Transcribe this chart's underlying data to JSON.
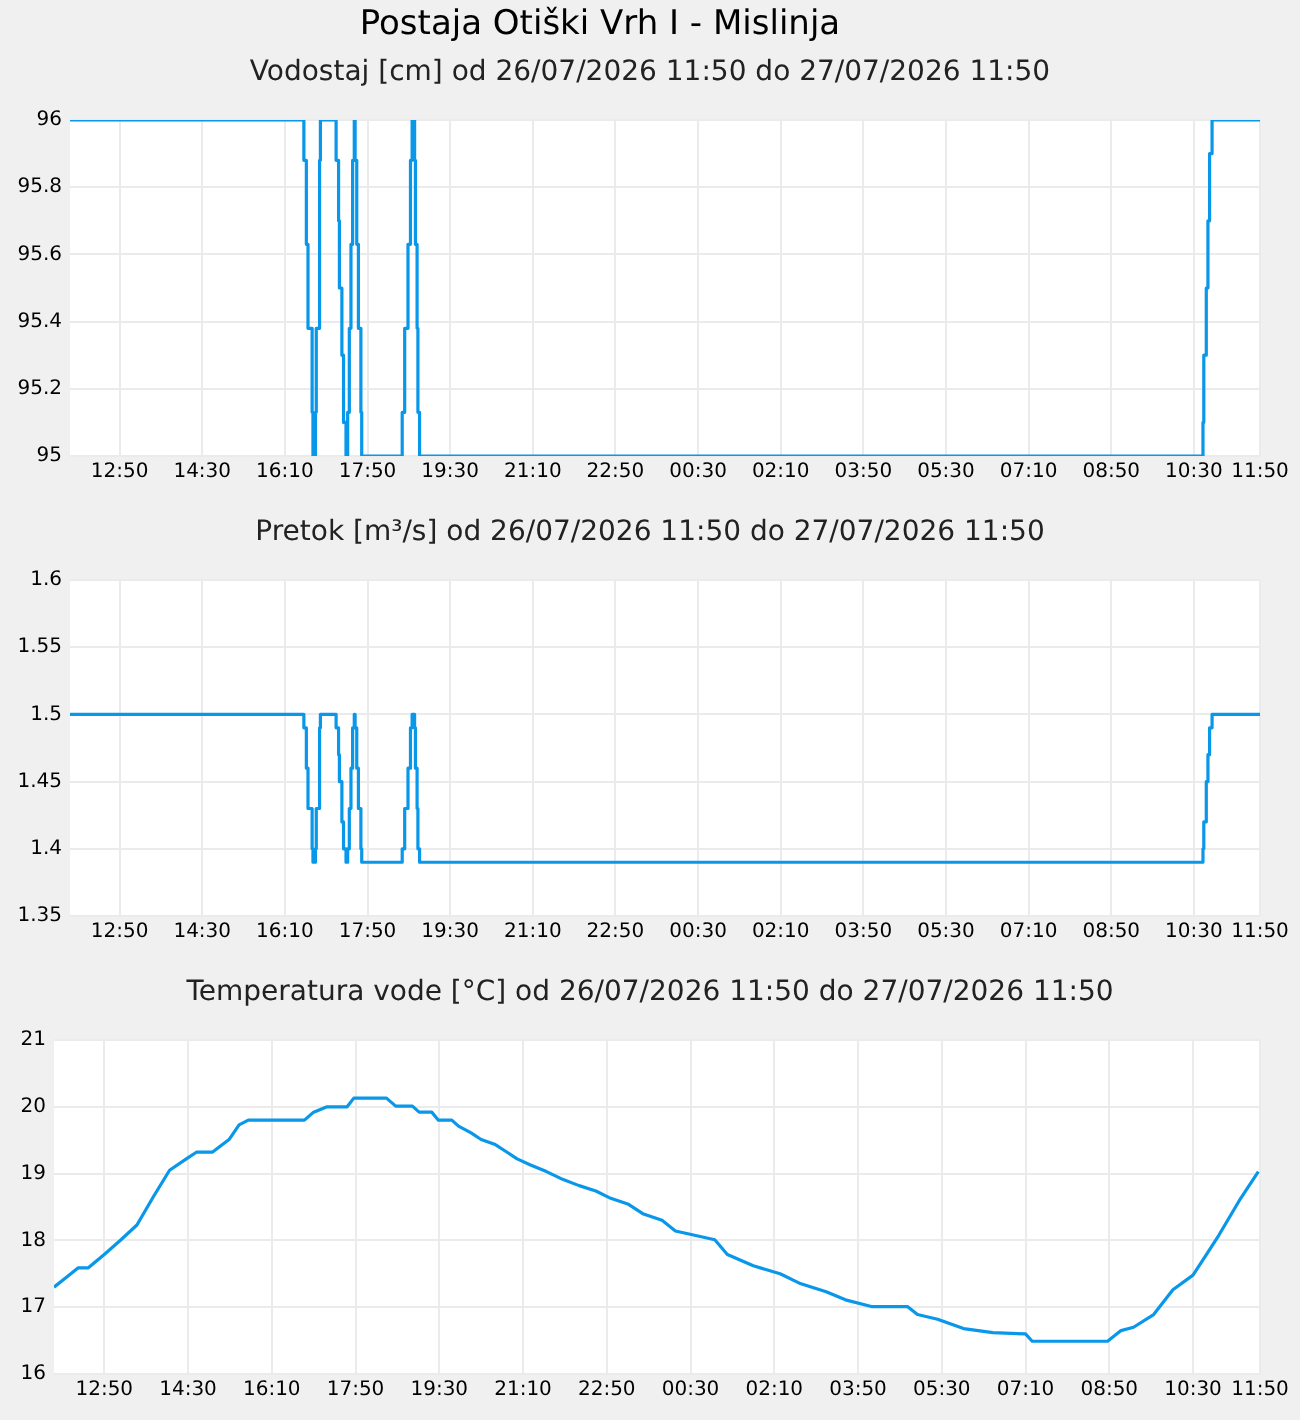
{
  "chart_data": [
    {
      "type": "step",
      "title": "Postaja Otiški Vrh I - Mislinja",
      "subtitle": "Vodostaj [cm] od 26/07/2026 11:50 do 27/07/2026 11:50",
      "color": "#0897e9",
      "grid": true,
      "x": [
        "2026-07-26T11:50",
        "2026-07-26T16:33",
        "2026-07-26T16:36",
        "2026-07-26T16:38",
        "2026-07-26T16:43",
        "2026-07-26T16:44",
        "2026-07-26T16:47",
        "2026-07-26T16:48",
        "2026-07-26T16:52",
        "2026-07-26T16:53",
        "2026-07-26T17:12",
        "2026-07-26T17:15",
        "2026-07-26T17:16",
        "2026-07-26T17:19",
        "2026-07-26T17:21",
        "2026-07-26T17:24",
        "2026-07-26T17:26",
        "2026-07-26T17:28",
        "2026-07-26T17:30",
        "2026-07-26T17:32",
        "2026-07-26T17:34",
        "2026-07-26T17:35",
        "2026-07-26T17:37",
        "2026-07-26T17:39",
        "2026-07-26T17:42",
        "2026-07-26T17:43",
        "2026-07-26T18:32",
        "2026-07-26T18:35",
        "2026-07-26T18:39",
        "2026-07-26T18:42",
        "2026-07-26T18:44",
        "2026-07-26T18:47",
        "2026-07-26T18:48",
        "2026-07-26T18:50",
        "2026-07-26T18:51",
        "2026-07-26T18:53",
        "2026-07-27T10:41",
        "2026-07-27T10:42",
        "2026-07-27T10:45",
        "2026-07-27T10:47",
        "2026-07-27T10:49",
        "2026-07-27T10:52",
        "2026-07-27T11:50"
      ],
      "values": [
        96,
        95.88,
        95.63,
        95.38,
        95.13,
        95,
        95.13,
        95.38,
        95.88,
        96,
        95.88,
        95.7,
        95.5,
        95.3,
        95.1,
        95,
        95.13,
        95.38,
        95.63,
        95.88,
        96,
        95.88,
        95.63,
        95.38,
        95.13,
        95,
        95.13,
        95.38,
        95.63,
        95.88,
        96,
        95.88,
        95.63,
        95.38,
        95.13,
        95,
        95.1,
        95.3,
        95.5,
        95.7,
        95.9,
        96,
        96
      ],
      "xlim": [
        "2026-07-26T11:50",
        "2026-07-27T11:50"
      ],
      "xticks": [
        {
          "value": "2026-07-26T12:50",
          "label": "12:50"
        },
        {
          "value": "2026-07-26T14:30",
          "label": "14:30"
        },
        {
          "value": "2026-07-26T16:10",
          "label": "16:10"
        },
        {
          "value": "2026-07-26T17:50",
          "label": "17:50"
        },
        {
          "value": "2026-07-26T19:30",
          "label": "19:30"
        },
        {
          "value": "2026-07-26T21:10",
          "label": "21:10"
        },
        {
          "value": "2026-07-26T22:50",
          "label": "22:50"
        },
        {
          "value": "2026-07-27T00:30",
          "label": "00:30"
        },
        {
          "value": "2026-07-27T02:10",
          "label": "02:10"
        },
        {
          "value": "2026-07-27T03:50",
          "label": "03:50"
        },
        {
          "value": "2026-07-27T05:30",
          "label": "05:30"
        },
        {
          "value": "2026-07-27T07:10",
          "label": "07:10"
        },
        {
          "value": "2026-07-27T08:50",
          "label": "08:50"
        },
        {
          "value": "2026-07-27T10:30",
          "label": "10:30"
        },
        {
          "value": "2026-07-27T11:50",
          "label": "11:50"
        }
      ],
      "ylim": [
        95,
        96
      ],
      "yticks": [
        95,
        95.2,
        95.4,
        95.6,
        95.8,
        96
      ]
    },
    {
      "type": "step",
      "title": "Pretok [m³/s] od 26/07/2026 11:50 do 27/07/2026 11:50",
      "color": "#0897e9",
      "grid": true,
      "x": [
        "2026-07-26T11:50",
        "2026-07-26T16:33",
        "2026-07-26T16:36",
        "2026-07-26T16:38",
        "2026-07-26T16:43",
        "2026-07-26T16:44",
        "2026-07-26T16:47",
        "2026-07-26T16:48",
        "2026-07-26T16:52",
        "2026-07-26T16:53",
        "2026-07-26T17:12",
        "2026-07-26T17:15",
        "2026-07-26T17:16",
        "2026-07-26T17:19",
        "2026-07-26T17:21",
        "2026-07-26T17:24",
        "2026-07-26T17:26",
        "2026-07-26T17:28",
        "2026-07-26T17:30",
        "2026-07-26T17:32",
        "2026-07-26T17:34",
        "2026-07-26T17:35",
        "2026-07-26T17:37",
        "2026-07-26T17:39",
        "2026-07-26T17:42",
        "2026-07-26T17:43",
        "2026-07-26T18:32",
        "2026-07-26T18:35",
        "2026-07-26T18:39",
        "2026-07-26T18:42",
        "2026-07-26T18:44",
        "2026-07-26T18:47",
        "2026-07-26T18:48",
        "2026-07-26T18:50",
        "2026-07-26T18:51",
        "2026-07-26T18:53",
        "2026-07-27T10:41",
        "2026-07-27T10:42",
        "2026-07-27T10:45",
        "2026-07-27T10:47",
        "2026-07-27T10:49",
        "2026-07-27T10:52",
        "2026-07-27T11:50"
      ],
      "values": [
        1.5,
        1.49,
        1.46,
        1.43,
        1.4,
        1.39,
        1.4,
        1.43,
        1.49,
        1.5,
        1.49,
        1.47,
        1.45,
        1.42,
        1.4,
        1.39,
        1.4,
        1.43,
        1.46,
        1.49,
        1.5,
        1.49,
        1.46,
        1.43,
        1.4,
        1.39,
        1.4,
        1.43,
        1.46,
        1.49,
        1.5,
        1.49,
        1.46,
        1.43,
        1.4,
        1.39,
        1.4,
        1.42,
        1.45,
        1.47,
        1.49,
        1.5,
        1.5
      ],
      "xlim": [
        "2026-07-26T11:50",
        "2026-07-27T11:50"
      ],
      "xticks": [
        {
          "value": "2026-07-26T12:50",
          "label": "12:50"
        },
        {
          "value": "2026-07-26T14:30",
          "label": "14:30"
        },
        {
          "value": "2026-07-26T16:10",
          "label": "16:10"
        },
        {
          "value": "2026-07-26T17:50",
          "label": "17:50"
        },
        {
          "value": "2026-07-26T19:30",
          "label": "19:30"
        },
        {
          "value": "2026-07-26T21:10",
          "label": "21:10"
        },
        {
          "value": "2026-07-26T22:50",
          "label": "22:50"
        },
        {
          "value": "2026-07-27T00:30",
          "label": "00:30"
        },
        {
          "value": "2026-07-27T02:10",
          "label": "02:10"
        },
        {
          "value": "2026-07-27T03:50",
          "label": "03:50"
        },
        {
          "value": "2026-07-27T05:30",
          "label": "05:30"
        },
        {
          "value": "2026-07-27T07:10",
          "label": "07:10"
        },
        {
          "value": "2026-07-27T08:50",
          "label": "08:50"
        },
        {
          "value": "2026-07-27T10:30",
          "label": "10:30"
        },
        {
          "value": "2026-07-27T11:50",
          "label": "11:50"
        }
      ],
      "ylim": [
        1.35,
        1.6
      ],
      "yticks": [
        1.35,
        {
          "value": 1.4,
          "label": "1.4"
        },
        1.45,
        {
          "value": 1.5,
          "label": "1.5"
        },
        1.55,
        {
          "value": 1.6,
          "label": "1.6"
        }
      ]
    },
    {
      "type": "line",
      "title": "Temperatura vode [°C] od 26/07/2026 11:50 do 27/07/2026 11:50",
      "color": "#0897e9",
      "grid": true,
      "x": [
        "2026-07-26T11:50",
        "2026-07-26T12:03",
        "2026-07-26T12:19",
        "2026-07-26T12:31",
        "2026-07-26T12:50",
        "2026-07-26T13:10",
        "2026-07-26T13:29",
        "2026-07-26T13:49",
        "2026-07-26T14:08",
        "2026-07-26T14:28",
        "2026-07-26T14:40",
        "2026-07-26T14:59",
        "2026-07-26T15:19",
        "2026-07-26T15:31",
        "2026-07-26T15:42",
        "2026-07-26T16:49",
        "2026-07-26T17:00",
        "2026-07-26T17:16",
        "2026-07-26T17:40",
        "2026-07-26T17:48",
        "2026-07-26T18:27",
        "2026-07-26T18:38",
        "2026-07-26T18:58",
        "2026-07-26T19:06",
        "2026-07-26T19:21",
        "2026-07-26T19:29",
        "2026-07-26T19:45",
        "2026-07-26T19:53",
        "2026-07-26T20:08",
        "2026-07-26T20:20",
        "2026-07-26T20:36",
        "2026-07-26T20:51",
        "2026-07-26T21:03",
        "2026-07-26T21:19",
        "2026-07-26T21:38",
        "2026-07-26T21:58",
        "2026-07-26T22:17",
        "2026-07-26T22:37",
        "2026-07-26T22:53",
        "2026-07-26T23:16",
        "2026-07-26T23:33",
        "2026-07-26T23:56",
        "2026-07-27T00:12",
        "2026-07-27T00:59",
        "2026-07-27T01:14",
        "2026-07-27T01:45",
        "2026-07-27T02:17",
        "2026-07-27T02:40",
        "2026-07-27T03:12",
        "2026-07-27T03:35",
        "2026-07-27T04:06",
        "2026-07-27T04:49",
        "2026-07-27T05:01",
        "2026-07-27T05:25",
        "2026-07-27T05:56",
        "2026-07-27T06:31",
        "2026-07-27T07:10",
        "2026-07-27T07:18",
        "2026-07-27T08:48",
        "2026-07-27T09:04",
        "2026-07-27T09:19",
        "2026-07-27T09:43",
        "2026-07-27T10:06",
        "2026-07-27T10:30",
        "2026-07-27T10:45",
        "2026-07-27T11:01",
        "2026-07-27T11:25",
        "2026-07-27T11:48"
      ],
      "values": [
        17.3,
        17.43,
        17.59,
        17.59,
        17.79,
        18.01,
        18.23,
        18.66,
        19.05,
        19.22,
        19.32,
        19.32,
        19.51,
        19.73,
        19.8,
        19.8,
        19.92,
        20,
        20,
        20.13,
        20.13,
        20.01,
        20.01,
        19.92,
        19.92,
        19.8,
        19.8,
        19.71,
        19.61,
        19.51,
        19.44,
        19.32,
        19.22,
        19.13,
        19.03,
        18.91,
        18.82,
        18.74,
        18.64,
        18.54,
        18.4,
        18.3,
        18.14,
        18.01,
        17.79,
        17.62,
        17.5,
        17.36,
        17.23,
        17.11,
        17.01,
        17.01,
        16.89,
        16.82,
        16.68,
        16.62,
        16.6,
        16.49,
        16.49,
        16.65,
        16.7,
        16.89,
        17.26,
        17.48,
        17.77,
        18.08,
        18.59,
        19.03
      ],
      "xlim": [
        "2026-07-26T11:50",
        "2026-07-27T11:50"
      ],
      "xticks": [
        {
          "value": "2026-07-26T12:50",
          "label": "12:50"
        },
        {
          "value": "2026-07-26T14:30",
          "label": "14:30"
        },
        {
          "value": "2026-07-26T16:10",
          "label": "16:10"
        },
        {
          "value": "2026-07-26T17:50",
          "label": "17:50"
        },
        {
          "value": "2026-07-26T19:30",
          "label": "19:30"
        },
        {
          "value": "2026-07-26T21:10",
          "label": "21:10"
        },
        {
          "value": "2026-07-26T22:50",
          "label": "22:50"
        },
        {
          "value": "2026-07-27T00:30",
          "label": "00:30"
        },
        {
          "value": "2026-07-27T02:10",
          "label": "02:10"
        },
        {
          "value": "2026-07-27T03:50",
          "label": "03:50"
        },
        {
          "value": "2026-07-27T05:30",
          "label": "05:30"
        },
        {
          "value": "2026-07-27T07:10",
          "label": "07:10"
        },
        {
          "value": "2026-07-27T08:50",
          "label": "08:50"
        },
        {
          "value": "2026-07-27T10:30",
          "label": "10:30"
        },
        {
          "value": "2026-07-27T11:50",
          "label": "11:50"
        }
      ],
      "ylim": [
        16,
        21
      ],
      "yticks": [
        16,
        17,
        18,
        19,
        20,
        21
      ]
    }
  ]
}
